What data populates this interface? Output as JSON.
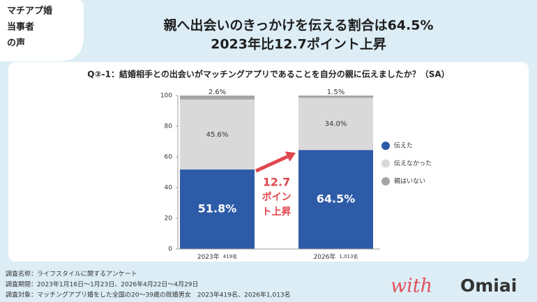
{
  "tag": [
    "マチアプ婚",
    "当事者",
    "の声"
  ],
  "header": {
    "title_lines": [
      "親へ出会いのきっかけを伝える割合は64.5%",
      "2023年比12.7ポイント上昇"
    ]
  },
  "chart_data": {
    "type": "stacked_bar",
    "title": "Q②-1：結婚相手との出会いがマッチングアプリであることを自分の親に伝えましたか？（SA）",
    "categories": [
      "2023年",
      "2026年"
    ],
    "sample_sizes": [
      "419名",
      "1,013名"
    ],
    "series": [
      {
        "name": "伝えた",
        "color": "#2d5ba8",
        "values": [
          51.8,
          64.5
        ],
        "value_labels": [
          "51.8%",
          "64.5%"
        ]
      },
      {
        "name": "伝えなかった",
        "color": "#d9d9d9",
        "values": [
          45.6,
          34.0
        ],
        "value_labels": [
          "45.6%",
          "34.0%"
        ]
      },
      {
        "name": "親はいない",
        "color": "#a5a5a5",
        "values": [
          2.6,
          1.5
        ],
        "value_labels": [
          "2.6%",
          "1.5%"
        ]
      }
    ],
    "ylim": [
      0,
      100
    ],
    "yticks": [
      0,
      20,
      40,
      60,
      80,
      100
    ],
    "annotation": [
      "12.7",
      "ポイン",
      "ト上昇"
    ]
  },
  "footnotes": [
    "調査名称：ライフスタイルに関するアンケート",
    "調査期間：2023年1月16日〜1月23日、2026年4月22日〜4月29日",
    "調査対象：マッチングアプリ婚をした全国の20〜39歳の既婚男女　2023年419名、2026年1,013名"
  ],
  "logo": {
    "script": "with",
    "word": "Omiai"
  }
}
